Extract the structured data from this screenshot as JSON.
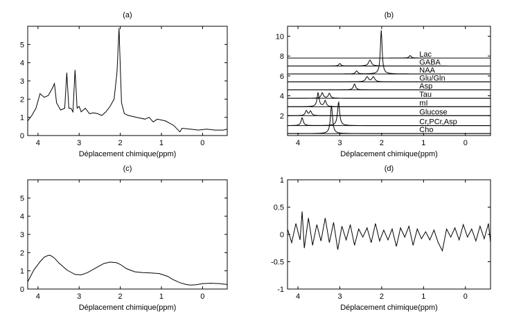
{
  "figure": {
    "panels": [
      {
        "id": "a",
        "label": "(a)",
        "xlabel": "Déplacement chimique(ppm)"
      },
      {
        "id": "b",
        "label": "(b)",
        "xlabel": "Déplacement chimique(ppm)"
      },
      {
        "id": "c",
        "label": "(c)",
        "xlabel": "Déplacement chimique(ppm)"
      },
      {
        "id": "d",
        "label": "(d)",
        "xlabel": "Déplacement chimique(ppm)"
      }
    ]
  },
  "chart_data": [
    {
      "panel": "a",
      "type": "line",
      "title": "(a)",
      "xlabel": "Déplacement chimique(ppm)",
      "ylabel": "",
      "x_reversed": true,
      "xlim": [
        4.25,
        -0.6
      ],
      "ylim": [
        0,
        6
      ],
      "xticks": [
        4,
        3,
        2,
        1,
        0
      ],
      "yticks": [
        0,
        1,
        2,
        3,
        4,
        5
      ],
      "grid": false,
      "series": [
        {
          "x": [
            4.25,
            4.15,
            4.05,
            3.95,
            3.85,
            3.75,
            3.65,
            3.6,
            3.55,
            3.45,
            3.35,
            3.3,
            3.25,
            3.2,
            3.15,
            3.1,
            3.05,
            3.0,
            2.95,
            2.85,
            2.75,
            2.65,
            2.55,
            2.45,
            2.35,
            2.25,
            2.15,
            2.08,
            2.03,
            2.0,
            1.97,
            1.9,
            1.8,
            1.6,
            1.4,
            1.3,
            1.2,
            1.1,
            0.9,
            0.7,
            0.55,
            0.5,
            0.3,
            0.1,
            -0.1,
            -0.3,
            -0.5,
            -0.6
          ],
          "y": [
            0.8,
            1.1,
            1.5,
            2.3,
            2.1,
            2.2,
            2.6,
            2.85,
            1.8,
            1.4,
            1.5,
            3.45,
            1.5,
            1.5,
            1.3,
            3.6,
            1.5,
            1.6,
            1.3,
            1.5,
            1.2,
            1.25,
            1.2,
            1.1,
            1.3,
            1.6,
            2.0,
            3.5,
            5.9,
            3.8,
            1.8,
            1.2,
            1.1,
            1.0,
            0.9,
            1.0,
            0.75,
            0.9,
            0.8,
            0.55,
            0.2,
            0.4,
            0.35,
            0.3,
            0.35,
            0.3,
            0.3,
            0.35
          ]
        }
      ]
    },
    {
      "panel": "b",
      "type": "line",
      "title": "(b)",
      "xlabel": "Déplacement chimique(ppm)",
      "ylabel": "",
      "x_reversed": true,
      "xlim": [
        4.25,
        -0.6
      ],
      "ylim": [
        0,
        11
      ],
      "xticks": [
        4,
        3,
        2,
        1,
        0
      ],
      "yticks": [
        2,
        4,
        6,
        8,
        10
      ],
      "grid": false,
      "series": [
        {
          "name": "Cho",
          "baseline": 0.2,
          "peaks": [
            {
              "center": 3.2,
              "height": 2.8,
              "width": 0.03
            }
          ]
        },
        {
          "name": "Cr,PCr,Asp",
          "baseline": 1.0,
          "peaks": [
            {
              "center": 3.9,
              "height": 0.8,
              "width": 0.03
            },
            {
              "center": 3.03,
              "height": 2.4,
              "width": 0.03
            }
          ]
        },
        {
          "name": "Glucose",
          "baseline": 2.0,
          "peaks": [
            {
              "center": 3.8,
              "height": 0.5,
              "width": 0.03
            },
            {
              "center": 3.7,
              "height": 0.45,
              "width": 0.03
            }
          ]
        },
        {
          "name": "mI",
          "baseline": 2.9,
          "peaks": [
            {
              "center": 3.52,
              "height": 1.4,
              "width": 0.03
            },
            {
              "center": 3.35,
              "height": 0.6,
              "width": 0.03
            }
          ]
        },
        {
          "name": "Tau",
          "baseline": 3.75,
          "peaks": [
            {
              "center": 3.42,
              "height": 0.55,
              "width": 0.03
            },
            {
              "center": 3.25,
              "height": 0.5,
              "width": 0.03
            }
          ]
        },
        {
          "name": "Asp",
          "baseline": 4.6,
          "peaks": [
            {
              "center": 2.65,
              "height": 0.6,
              "width": 0.03
            }
          ]
        },
        {
          "name": "Glu/Gln",
          "baseline": 5.4,
          "peaks": [
            {
              "center": 2.35,
              "height": 0.5,
              "width": 0.04
            },
            {
              "center": 2.2,
              "height": 0.5,
              "width": 0.04
            }
          ]
        },
        {
          "name": "NAA",
          "baseline": 6.2,
          "peaks": [
            {
              "center": 2.01,
              "height": 4.4,
              "width": 0.025
            },
            {
              "center": 2.6,
              "height": 0.3,
              "width": 0.03
            }
          ]
        },
        {
          "name": "GABA",
          "baseline": 7.0,
          "peaks": [
            {
              "center": 2.28,
              "height": 0.6,
              "width": 0.04
            },
            {
              "center": 3.0,
              "height": 0.25,
              "width": 0.03
            }
          ]
        },
        {
          "name": "Lac",
          "baseline": 7.8,
          "peaks": [
            {
              "center": 1.32,
              "height": 0.25,
              "width": 0.03
            }
          ]
        }
      ]
    },
    {
      "panel": "c",
      "type": "line",
      "title": "(c)",
      "xlabel": "Déplacement chimique(ppm)",
      "ylabel": "",
      "x_reversed": true,
      "xlim": [
        4.25,
        -0.6
      ],
      "ylim": [
        0,
        6
      ],
      "xticks": [
        4,
        3,
        2,
        1,
        0
      ],
      "yticks": [
        0,
        1,
        2,
        3,
        4,
        5
      ],
      "grid": false,
      "series": [
        {
          "x": [
            4.25,
            4.1,
            3.95,
            3.85,
            3.75,
            3.7,
            3.6,
            3.5,
            3.3,
            3.1,
            2.95,
            2.8,
            2.6,
            2.4,
            2.25,
            2.1,
            2.0,
            1.85,
            1.65,
            1.45,
            1.25,
            1.05,
            0.85,
            0.7,
            0.55,
            0.4,
            0.3,
            0.15,
            0.0,
            -0.2,
            -0.4,
            -0.6
          ],
          "y": [
            0.4,
            1.05,
            1.5,
            1.75,
            1.85,
            1.85,
            1.7,
            1.45,
            1.05,
            0.8,
            0.78,
            0.9,
            1.15,
            1.4,
            1.48,
            1.45,
            1.35,
            1.12,
            0.95,
            0.9,
            0.88,
            0.85,
            0.7,
            0.5,
            0.35,
            0.25,
            0.22,
            0.24,
            0.3,
            0.32,
            0.3,
            0.25
          ]
        }
      ]
    },
    {
      "panel": "d",
      "type": "line",
      "title": "(d)",
      "xlabel": "Déplacement chimique(ppm)",
      "ylabel": "",
      "x_reversed": true,
      "xlim": [
        4.25,
        -0.6
      ],
      "ylim": [
        -1,
        1
      ],
      "xticks": [
        4,
        3,
        2,
        1,
        0
      ],
      "yticks": [
        -1,
        -0.5,
        0,
        0.5,
        1
      ],
      "ytick_labels": [
        "-1",
        "-0.5",
        "0",
        "0.5",
        "1"
      ],
      "grid": false,
      "series": [
        {
          "x": [
            4.25,
            4.15,
            4.05,
            3.95,
            3.9,
            3.85,
            3.75,
            3.65,
            3.55,
            3.45,
            3.35,
            3.25,
            3.15,
            3.05,
            2.95,
            2.85,
            2.75,
            2.65,
            2.55,
            2.45,
            2.35,
            2.25,
            2.15,
            2.05,
            1.95,
            1.85,
            1.75,
            1.65,
            1.55,
            1.45,
            1.35,
            1.25,
            1.15,
            1.05,
            0.95,
            0.85,
            0.75,
            0.65,
            0.55,
            0.45,
            0.35,
            0.25,
            0.15,
            0.05,
            -0.05,
            -0.15,
            -0.25,
            -0.35,
            -0.45,
            -0.55,
            -0.6
          ],
          "y": [
            0.1,
            -0.15,
            0.2,
            -0.1,
            0.42,
            -0.25,
            0.3,
            -0.2,
            0.18,
            -0.12,
            0.3,
            -0.15,
            0.22,
            -0.28,
            0.15,
            -0.1,
            0.18,
            -0.2,
            0.1,
            -0.05,
            0.12,
            -0.15,
            0.2,
            -0.12,
            0.08,
            -0.1,
            0.1,
            -0.22,
            0.12,
            -0.05,
            0.15,
            -0.2,
            0.1,
            -0.08,
            0.05,
            -0.1,
            0.08,
            -0.15,
            -0.3,
            0.1,
            -0.05,
            0.12,
            -0.1,
            0.18,
            -0.05,
            0.1,
            -0.12,
            0.15,
            -0.08,
            0.2,
            -0.15
          ]
        }
      ]
    }
  ]
}
